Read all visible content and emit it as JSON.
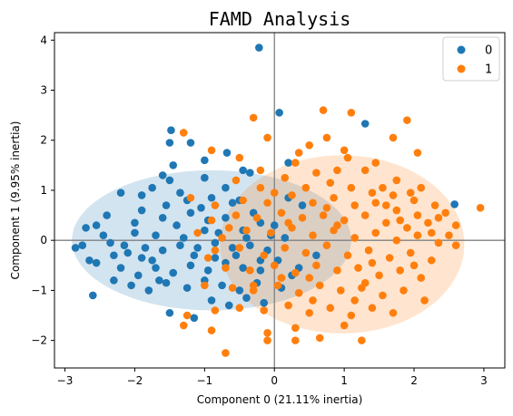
{
  "chart_data": {
    "type": "scatter",
    "title": "FAMD Analysis",
    "xlabel": "Component 0 (21.11% inertia)",
    "ylabel": "Component 1 (9.95% inertia)",
    "xlim": [
      -3.15,
      3.3
    ],
    "ylim": [
      -2.55,
      4.15
    ],
    "xticks": [
      -3,
      -2,
      -1,
      0,
      1,
      2,
      3
    ],
    "yticks": [
      -2,
      -1,
      0,
      1,
      2,
      3,
      4
    ],
    "grid": false,
    "reference_lines": {
      "x": 0,
      "y": 0,
      "color": "#808080"
    },
    "legend": {
      "position": "top-right",
      "entries": [
        "0",
        "1"
      ]
    },
    "ellipses": [
      {
        "series": "0",
        "center": [
          -0.9,
          0.0
        ],
        "radius_x": 2.0,
        "radius_y": 1.4,
        "color": "#1f77b4",
        "opacity": 0.2
      },
      {
        "series": "1",
        "center": [
          0.97,
          -0.08
        ],
        "radius_x": 1.75,
        "radius_y": 1.78,
        "color": "#ff7f0e",
        "opacity": 0.2
      }
    ],
    "series": [
      {
        "name": "0",
        "color": "#1f77b4",
        "points": [
          [
            -0.22,
            3.85
          ],
          [
            0.07,
            2.55
          ],
          [
            1.3,
            2.33
          ],
          [
            -1.48,
            2.2
          ],
          [
            -1.2,
            1.95
          ],
          [
            -1.5,
            1.95
          ],
          [
            -0.68,
            1.75
          ],
          [
            -1.0,
            1.6
          ],
          [
            0.2,
            1.55
          ],
          [
            -0.35,
            1.35
          ],
          [
            -0.45,
            1.4
          ],
          [
            -1.45,
            1.5
          ],
          [
            -1.0,
            1.25
          ],
          [
            -1.5,
            1.2
          ],
          [
            -1.75,
            1.05
          ],
          [
            -2.2,
            0.95
          ],
          [
            -0.9,
            0.85
          ],
          [
            -0.5,
            0.8
          ],
          [
            0.2,
            0.85
          ],
          [
            0.4,
            0.7
          ],
          [
            -1.25,
            0.8
          ],
          [
            -1.55,
            0.7
          ],
          [
            -1.9,
            0.6
          ],
          [
            -2.4,
            0.5
          ],
          [
            -2.7,
            0.25
          ],
          [
            -2.55,
            0.3
          ],
          [
            -2.35,
            -0.05
          ],
          [
            -2.0,
            0.35
          ],
          [
            -1.7,
            0.1
          ],
          [
            -1.4,
            0.3
          ],
          [
            -1.2,
            0.55
          ],
          [
            -1.0,
            0.2
          ],
          [
            -0.7,
            0.45
          ],
          [
            -0.45,
            0.2
          ],
          [
            -0.2,
            0.35
          ],
          [
            -0.05,
            0.1
          ],
          [
            0.15,
            0.05
          ],
          [
            -2.75,
            -0.1
          ],
          [
            -2.65,
            -0.4
          ],
          [
            -2.55,
            -0.45
          ],
          [
            -2.3,
            -0.3
          ],
          [
            -2.1,
            -0.25
          ],
          [
            -1.85,
            -0.15
          ],
          [
            -1.6,
            -0.2
          ],
          [
            -1.35,
            -0.1
          ],
          [
            -1.1,
            -0.15
          ],
          [
            -0.85,
            -0.05
          ],
          [
            -0.6,
            -0.15
          ],
          [
            -0.35,
            -0.1
          ],
          [
            -0.1,
            -0.2
          ],
          [
            -2.2,
            -0.55
          ],
          [
            -1.95,
            -0.7
          ],
          [
            -1.7,
            -0.55
          ],
          [
            -1.45,
            -0.65
          ],
          [
            -1.2,
            -0.5
          ],
          [
            -0.95,
            -0.6
          ],
          [
            -0.7,
            -0.45
          ],
          [
            -0.45,
            -0.55
          ],
          [
            -0.2,
            -0.6
          ],
          [
            0.05,
            -0.4
          ],
          [
            -2.6,
            -1.1
          ],
          [
            -2.3,
            -0.8
          ],
          [
            -2.05,
            -0.9
          ],
          [
            -1.8,
            -1.0
          ],
          [
            -1.55,
            -0.85
          ],
          [
            -1.25,
            -0.95
          ],
          [
            -1.0,
            -0.8
          ],
          [
            -0.75,
            -0.9
          ],
          [
            -0.5,
            -1.0
          ],
          [
            -0.25,
            -0.85
          ],
          [
            -1.5,
            -1.45
          ],
          [
            -1.15,
            -1.55
          ],
          [
            -0.9,
            -1.2
          ],
          [
            -0.65,
            -1.3
          ],
          [
            -0.4,
            -1.15
          ],
          [
            -0.15,
            -1.25
          ],
          [
            0.1,
            -0.95
          ],
          [
            2.58,
            0.72
          ],
          [
            0.6,
            -0.3
          ],
          [
            0.35,
            -0.55
          ],
          [
            -1.9,
            0.9
          ],
          [
            -1.6,
            0.45
          ],
          [
            -1.05,
            0.65
          ],
          [
            -0.8,
            0.15
          ],
          [
            -0.55,
            -0.3
          ],
          [
            -0.3,
            0.55
          ],
          [
            -2.45,
            0.1
          ],
          [
            -2.15,
            -0.1
          ],
          [
            -1.75,
            -0.4
          ],
          [
            -1.3,
            0.05
          ],
          [
            -0.95,
            0.4
          ],
          [
            -0.6,
            0.75
          ],
          [
            -1.6,
            1.3
          ],
          [
            -1.35,
            0.95
          ],
          [
            -2.0,
            0.15
          ],
          [
            -1.15,
            -0.3
          ],
          [
            -0.85,
            -0.35
          ],
          [
            -1.65,
            -0.8
          ],
          [
            -1.9,
            -0.35
          ],
          [
            -0.4,
            0.05
          ],
          [
            -0.2,
            -0.4
          ],
          [
            0.0,
            0.3
          ],
          [
            -2.85,
            -0.15
          ],
          [
            -0.7,
            1.05
          ],
          [
            0.25,
            -0.7
          ]
        ]
      },
      {
        "name": "1",
        "color": "#ff7f0e",
        "points": [
          [
            0.7,
            2.6
          ],
          [
            1.1,
            2.55
          ],
          [
            1.9,
            2.4
          ],
          [
            -0.3,
            2.45
          ],
          [
            -1.3,
            2.15
          ],
          [
            1.7,
            2.05
          ],
          [
            -0.1,
            2.05
          ],
          [
            0.75,
            2.05
          ],
          [
            2.05,
            1.75
          ],
          [
            0.5,
            1.9
          ],
          [
            1.05,
            1.65
          ],
          [
            1.45,
            1.55
          ],
          [
            -0.9,
            1.8
          ],
          [
            -0.5,
            1.65
          ],
          [
            0.3,
            1.55
          ],
          [
            0.6,
            1.35
          ],
          [
            0.9,
            1.4
          ],
          [
            1.3,
            1.4
          ],
          [
            1.75,
            1.2
          ],
          [
            2.1,
            1.05
          ],
          [
            -0.55,
            1.2
          ],
          [
            -0.2,
            1.05
          ],
          [
            0.15,
            1.25
          ],
          [
            0.45,
            1.05
          ],
          [
            0.8,
            1.15
          ],
          [
            1.1,
            1.05
          ],
          [
            1.4,
            0.95
          ],
          [
            1.7,
            0.9
          ],
          [
            2.0,
            0.8
          ],
          [
            2.3,
            0.7
          ],
          [
            -1.2,
            0.85
          ],
          [
            -0.85,
            0.7
          ],
          [
            -0.45,
            0.8
          ],
          [
            -0.1,
            0.75
          ],
          [
            0.25,
            0.9
          ],
          [
            0.55,
            0.75
          ],
          [
            0.85,
            0.85
          ],
          [
            1.15,
            0.7
          ],
          [
            1.45,
            0.75
          ],
          [
            1.75,
            0.6
          ],
          [
            2.05,
            0.5
          ],
          [
            2.35,
            0.45
          ],
          [
            2.6,
            0.3
          ],
          [
            2.95,
            0.65
          ],
          [
            -0.9,
            0.4
          ],
          [
            -0.55,
            0.5
          ],
          [
            -0.25,
            0.45
          ],
          [
            0.1,
            0.55
          ],
          [
            0.4,
            0.45
          ],
          [
            0.7,
            0.5
          ],
          [
            1.0,
            0.4
          ],
          [
            1.3,
            0.5
          ],
          [
            1.6,
            0.35
          ],
          [
            1.9,
            0.25
          ],
          [
            2.2,
            0.35
          ],
          [
            2.5,
            0.1
          ],
          [
            -1.1,
            0.15
          ],
          [
            -0.75,
            0.05
          ],
          [
            -0.4,
            0.2
          ],
          [
            -0.05,
            0.15
          ],
          [
            0.25,
            0.25
          ],
          [
            0.55,
            0.1
          ],
          [
            0.85,
            0.2
          ],
          [
            1.15,
            0.05
          ],
          [
            1.45,
            0.15
          ],
          [
            1.75,
            0.0
          ],
          [
            2.05,
            0.1
          ],
          [
            2.35,
            -0.05
          ],
          [
            -0.85,
            -0.2
          ],
          [
            -0.5,
            -0.15
          ],
          [
            -0.15,
            -0.3
          ],
          [
            0.15,
            -0.15
          ],
          [
            0.45,
            -0.25
          ],
          [
            0.75,
            -0.1
          ],
          [
            1.05,
            -0.3
          ],
          [
            1.35,
            -0.2
          ],
          [
            1.65,
            -0.35
          ],
          [
            1.95,
            -0.25
          ],
          [
            2.25,
            -0.4
          ],
          [
            -0.7,
            -0.55
          ],
          [
            -0.35,
            -0.6
          ],
          [
            0.0,
            -0.5
          ],
          [
            0.3,
            -0.65
          ],
          [
            0.6,
            -0.5
          ],
          [
            0.9,
            -0.6
          ],
          [
            1.2,
            -0.55
          ],
          [
            1.5,
            -0.7
          ],
          [
            1.8,
            -0.6
          ],
          [
            2.1,
            -0.75
          ],
          [
            -1.0,
            -0.9
          ],
          [
            -0.6,
            -0.95
          ],
          [
            -0.3,
            -1.0
          ],
          [
            0.05,
            -0.9
          ],
          [
            0.35,
            -1.05
          ],
          [
            0.65,
            -0.9
          ],
          [
            0.95,
            -1.0
          ],
          [
            1.25,
            -0.95
          ],
          [
            1.55,
            -1.1
          ],
          [
            1.85,
            -1.0
          ],
          [
            2.15,
            -1.2
          ],
          [
            -1.25,
            -1.5
          ],
          [
            -0.85,
            -1.4
          ],
          [
            -0.5,
            -1.35
          ],
          [
            -0.15,
            -1.4
          ],
          [
            0.2,
            -1.3
          ],
          [
            0.5,
            -1.45
          ],
          [
            0.8,
            -1.35
          ],
          [
            1.1,
            -1.5
          ],
          [
            1.4,
            -1.35
          ],
          [
            1.7,
            -1.45
          ],
          [
            -0.9,
            -1.8
          ],
          [
            -0.1,
            -1.85
          ],
          [
            0.3,
            -1.75
          ],
          [
            0.65,
            -1.95
          ],
          [
            1.0,
            -1.7
          ],
          [
            1.25,
            -2.0
          ],
          [
            -0.7,
            -2.25
          ],
          [
            -1.3,
            -1.7
          ],
          [
            -0.1,
            -2.0
          ],
          [
            0.3,
            -2.0
          ],
          [
            2.6,
            -0.1
          ],
          [
            2.45,
            0.55
          ],
          [
            1.95,
            0.95
          ],
          [
            1.55,
            1.05
          ],
          [
            -0.3,
            -0.9
          ],
          [
            0.5,
            -0.75
          ],
          [
            1.3,
            -0.85
          ],
          [
            0.2,
            0.35
          ],
          [
            0.9,
            0.3
          ],
          [
            1.6,
            0.7
          ],
          [
            -0.65,
            0.25
          ],
          [
            0.1,
            -0.75
          ],
          [
            0.75,
            0.65
          ],
          [
            1.4,
            -0.45
          ],
          [
            2.0,
            -0.5
          ],
          [
            -0.2,
            1.4
          ],
          [
            0.35,
            1.75
          ],
          [
            1.0,
            1.8
          ],
          [
            -0.95,
            -0.35
          ],
          [
            0.55,
            -1.2
          ],
          [
            1.15,
            -1.2
          ],
          [
            1.8,
            0.4
          ],
          [
            0.0,
            0.95
          ],
          [
            2.25,
            0.15
          ]
        ]
      }
    ]
  }
}
